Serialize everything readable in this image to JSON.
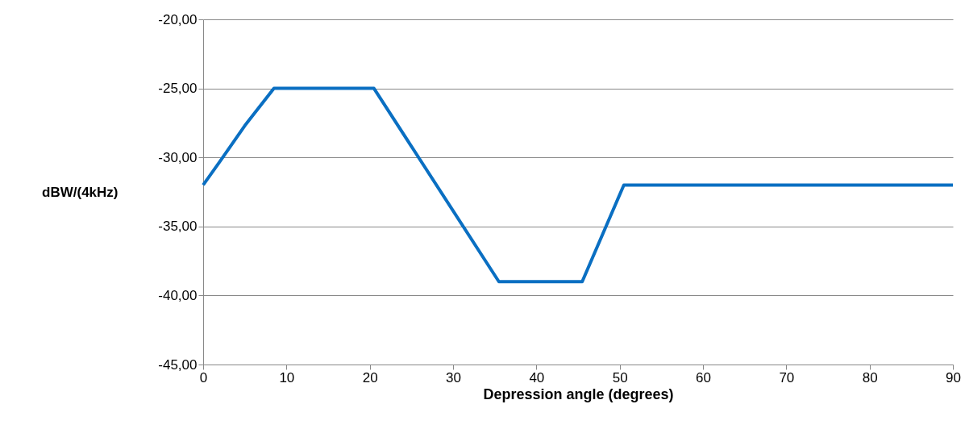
{
  "chart_data": {
    "type": "line",
    "xlabel": "Depression angle (degrees)",
    "ylabel": "dBW/(4kHz)",
    "x": [
      0,
      2,
      5,
      8.5,
      20.5,
      35.5,
      45.5,
      50.5,
      90
    ],
    "series": [
      {
        "color": "#0a6fc2",
        "values": [
          -32,
          -30.3,
          -27.7,
          -25,
          -25,
          -39,
          -39,
          -32,
          -32
        ]
      }
    ],
    "xlim": [
      0,
      90
    ],
    "xticks": [
      0,
      10,
      20,
      30,
      40,
      50,
      60,
      70,
      80,
      90
    ],
    "ylim": [
      -45,
      -20
    ],
    "yticks": [
      {
        "value": -45,
        "label": "-45,00"
      },
      {
        "value": -40,
        "label": "-40,00"
      },
      {
        "value": -35,
        "label": "-35,00"
      },
      {
        "value": -30,
        "label": "-30,00"
      },
      {
        "value": -25,
        "label": "-25,00"
      },
      {
        "value": -20,
        "label": "-20,00"
      }
    ],
    "grid": "y",
    "legend": false,
    "marker": "none",
    "line_style": "solid"
  }
}
